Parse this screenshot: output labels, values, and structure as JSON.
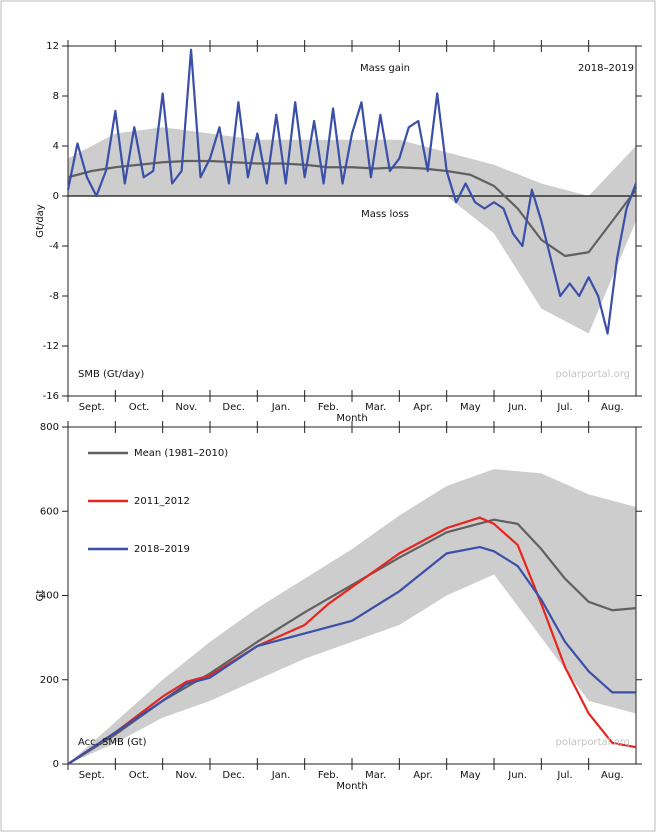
{
  "chart_data": [
    {
      "type": "line",
      "panel_label": "SMB (Gt/day)",
      "gain_label": "Mass gain",
      "loss_label": "Mass loss",
      "season_label": "2018–2019",
      "watermark": "polarportal.org",
      "ylabel": "Gt/day",
      "xlabel": "Month",
      "categories": [
        "Sept.",
        "Oct.",
        "Nov.",
        "Dec.",
        "Jan.",
        "Feb.",
        "Mar.",
        "Apr.",
        "May",
        "Jun.",
        "Jul.",
        "Aug."
      ],
      "xlim": [
        0,
        12
      ],
      "ylim": [
        -16,
        12
      ],
      "yticks": [
        -16,
        -12,
        -8,
        -4,
        0,
        4,
        8,
        12
      ],
      "zero_line": true,
      "band": {
        "color": "#cdcdcd",
        "x": [
          0,
          1,
          2,
          3,
          4,
          5,
          6,
          7,
          8,
          9,
          10,
          11,
          12
        ],
        "upper": [
          3,
          5,
          5.5,
          5,
          4.5,
          4.5,
          4.5,
          4.5,
          3.5,
          2.5,
          1,
          0,
          4
        ],
        "lower": [
          0,
          0,
          0,
          0,
          0,
          0,
          0,
          0,
          0,
          -3,
          -9,
          -11,
          -2
        ]
      },
      "series": [
        {
          "color": "#606060",
          "x": [
            0,
            0.5,
            1,
            1.5,
            2,
            2.5,
            3,
            3.5,
            4,
            4.5,
            5,
            5.5,
            6,
            6.5,
            7,
            7.5,
            8,
            8.5,
            9,
            9.5,
            10,
            10.5,
            11,
            11.5,
            12
          ],
          "values": [
            1.5,
            2,
            2.3,
            2.5,
            2.7,
            2.8,
            2.8,
            2.7,
            2.6,
            2.6,
            2.5,
            2.3,
            2.3,
            2.2,
            2.3,
            2.2,
            2,
            1.7,
            0.8,
            -1,
            -3.5,
            -4.8,
            -4.5,
            -2,
            0.5
          ]
        },
        {
          "color": "#3a4fa8",
          "x": [
            0,
            0.2,
            0.4,
            0.6,
            0.8,
            1,
            1.2,
            1.4,
            1.6,
            1.8,
            2,
            2.2,
            2.4,
            2.6,
            2.8,
            3,
            3.2,
            3.4,
            3.6,
            3.8,
            4,
            4.2,
            4.4,
            4.6,
            4.8,
            5,
            5.2,
            5.4,
            5.6,
            5.8,
            6,
            6.2,
            6.4,
            6.6,
            6.8,
            7,
            7.2,
            7.4,
            7.6,
            7.8,
            8,
            8.2,
            8.4,
            8.6,
            8.8,
            9,
            9.2,
            9.4,
            9.6,
            9.8,
            10,
            10.2,
            10.4,
            10.6,
            10.8,
            11,
            11.2,
            11.4,
            11.6,
            11.8,
            12
          ],
          "values": [
            0.5,
            4.2,
            1.5,
            0,
            2,
            6.8,
            1,
            5.5,
            1.5,
            2,
            8.2,
            1,
            2,
            11.7,
            1.5,
            3,
            5.5,
            1,
            7.5,
            1.5,
            5,
            1,
            6.5,
            1,
            7.5,
            1.5,
            6,
            1,
            7,
            1,
            5,
            7.5,
            1.5,
            6.5,
            2,
            3,
            5.5,
            6,
            2,
            8.2,
            2,
            -0.5,
            1,
            -0.5,
            -1,
            -0.5,
            -1,
            -3,
            -4,
            0.5,
            -2,
            -5,
            -8,
            -7,
            -8,
            -6.5,
            -8,
            -11,
            -5,
            -1,
            1
          ]
        }
      ]
    },
    {
      "type": "line",
      "panel_label": "Acc. SMB (Gt)",
      "watermark": "polarportal.org",
      "ylabel": "Gt",
      "xlabel": "Month",
      "categories": [
        "Sept.",
        "Oct.",
        "Nov.",
        "Dec.",
        "Jan.",
        "Feb.",
        "Mar.",
        "Apr.",
        "May",
        "Jun.",
        "Jul.",
        "Aug."
      ],
      "xlim": [
        0,
        12
      ],
      "ylim": [
        0,
        800
      ],
      "yticks": [
        0,
        200,
        400,
        600,
        800
      ],
      "legend": "top-left",
      "band": {
        "color": "#cdcdcd",
        "x": [
          0,
          1,
          2,
          3,
          4,
          5,
          6,
          7,
          8,
          9,
          10,
          11,
          12
        ],
        "upper": [
          0,
          100,
          200,
          290,
          370,
          440,
          510,
          590,
          660,
          700,
          690,
          640,
          610
        ],
        "lower": [
          0,
          50,
          110,
          150,
          200,
          250,
          290,
          330,
          400,
          450,
          300,
          150,
          120
        ]
      },
      "series": [
        {
          "name": "Mean (1981–2010)",
          "color": "#606060",
          "x": [
            0,
            1,
            2,
            3,
            4,
            5,
            6,
            7,
            8,
            9,
            9.5,
            10,
            10.5,
            11,
            11.5,
            12
          ],
          "values": [
            0,
            70,
            150,
            215,
            290,
            360,
            425,
            490,
            550,
            580,
            570,
            510,
            440,
            385,
            365,
            370
          ]
        },
        {
          "name": "2011_2012",
          "color": "#e8251f",
          "x": [
            0,
            1,
            2,
            2.5,
            3,
            4,
            5,
            5.5,
            6,
            7,
            8,
            8.7,
            9,
            9.5,
            10,
            10.5,
            11,
            11.5,
            12
          ],
          "values": [
            0,
            75,
            160,
            195,
            210,
            280,
            330,
            380,
            420,
            500,
            560,
            585,
            570,
            520,
            380,
            230,
            120,
            50,
            40
          ]
        },
        {
          "name": "2018–2019",
          "color": "#3a4fa8",
          "x": [
            0,
            1,
            2,
            2.5,
            3,
            4,
            5,
            6,
            7,
            8,
            8.7,
            9,
            9.5,
            10,
            10.5,
            11,
            11.5,
            12
          ],
          "values": [
            0,
            75,
            150,
            190,
            205,
            280,
            310,
            340,
            410,
            500,
            515,
            505,
            470,
            390,
            290,
            220,
            170,
            170
          ]
        }
      ]
    }
  ]
}
